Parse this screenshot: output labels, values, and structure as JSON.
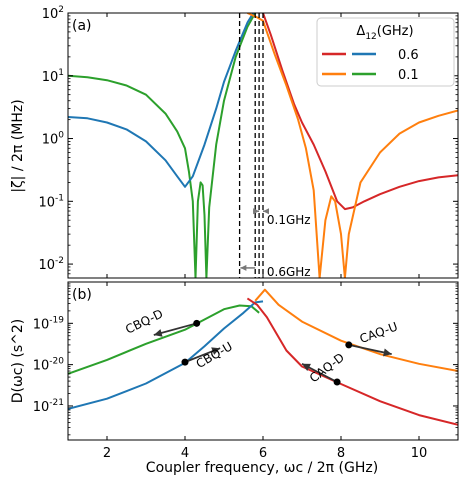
{
  "chart_data": [
    {
      "panel_label": "(a)",
      "type": "line",
      "yscale": "log",
      "xlim": [
        1,
        11
      ],
      "ylim": [
        0.006,
        100
      ],
      "xticks": [
        2,
        4,
        6,
        8,
        10
      ],
      "yticks": [
        {
          "value": 100,
          "label": "10^2"
        },
        {
          "value": 10,
          "label": "10^1"
        },
        {
          "value": 1,
          "label": "10^0"
        },
        {
          "value": 0.1,
          "label": "10^-1"
        },
        {
          "value": 0.01,
          "label": "10^-2"
        }
      ],
      "ylabel": "|ζ| / 2π (MHz)",
      "legend": {
        "title": "Δ12(GHz)",
        "placement": "top-right",
        "rows": [
          {
            "label": "0.6",
            "colors": [
              "#d62728",
              "#1f77b4"
            ]
          },
          {
            "label": "0.1",
            "colors": [
              "#ff7f0e",
              "#2ca02c"
            ]
          }
        ]
      },
      "series": [
        {
          "color": "#2ca02c",
          "points": [
            [
              1,
              10
            ],
            [
              1.5,
              9.5
            ],
            [
              2,
              8.5
            ],
            [
              2.5,
              7
            ],
            [
              3,
              5
            ],
            [
              3.5,
              2.5
            ],
            [
              3.8,
              1.3
            ],
            [
              4.0,
              0.7
            ],
            [
              4.1,
              0.3
            ],
            [
              4.2,
              0.1
            ],
            [
              4.27,
              0.006
            ],
            [
              4.33,
              0.1
            ],
            [
              4.4,
              0.2
            ],
            [
              4.45,
              0.18
            ],
            [
              4.5,
              0.06
            ],
            [
              4.55,
              0.006
            ],
            [
              4.62,
              0.08
            ],
            [
              4.8,
              0.8
            ],
            [
              5.0,
              4
            ],
            [
              5.3,
              20
            ],
            [
              5.6,
              60
            ],
            [
              5.8,
              100
            ]
          ]
        },
        {
          "color": "#1f77b4",
          "points": [
            [
              1,
              2.2
            ],
            [
              1.5,
              2.1
            ],
            [
              2,
              1.8
            ],
            [
              2.5,
              1.4
            ],
            [
              3,
              0.9
            ],
            [
              3.5,
              0.45
            ],
            [
              3.8,
              0.25
            ],
            [
              4.0,
              0.17
            ],
            [
              4.2,
              0.25
            ],
            [
              4.5,
              0.8
            ],
            [
              4.8,
              3
            ],
            [
              5.0,
              8
            ],
            [
              5.3,
              25
            ],
            [
              5.6,
              70
            ],
            [
              5.75,
              100
            ]
          ]
        },
        {
          "color": "#d62728",
          "points": [
            [
              6.0,
              100
            ],
            [
              6.2,
              45
            ],
            [
              6.5,
              12
            ],
            [
              6.8,
              3.5
            ],
            [
              7.0,
              1.8
            ],
            [
              7.3,
              0.8
            ],
            [
              7.6,
              0.3
            ],
            [
              7.9,
              0.1
            ],
            [
              8.1,
              0.075
            ],
            [
              8.3,
              0.08
            ],
            [
              8.6,
              0.1
            ],
            [
              9,
              0.13
            ],
            [
              9.5,
              0.17
            ],
            [
              10,
              0.21
            ],
            [
              10.5,
              0.24
            ],
            [
              11,
              0.26
            ]
          ]
        },
        {
          "color": "#ff7f0e",
          "points": [
            [
              5.6,
              100
            ],
            [
              5.85,
              85
            ],
            [
              6.0,
              75
            ],
            [
              6.3,
              22
            ],
            [
              6.6,
              7
            ],
            [
              6.9,
              2
            ],
            [
              7.1,
              0.7
            ],
            [
              7.3,
              0.15
            ],
            [
              7.45,
              0.006
            ],
            [
              7.6,
              0.05
            ],
            [
              7.75,
              0.12
            ],
            [
              7.85,
              0.1
            ],
            [
              8.0,
              0.03
            ],
            [
              8.1,
              0.006
            ],
            [
              8.2,
              0.03
            ],
            [
              8.5,
              0.2
            ],
            [
              9,
              0.6
            ],
            [
              9.5,
              1.2
            ],
            [
              10,
              1.8
            ],
            [
              10.5,
              2.3
            ],
            [
              11,
              2.8
            ]
          ]
        }
      ],
      "vlines": [
        5.4,
        5.8,
        5.9,
        6.0
      ],
      "annotations": [
        {
          "text": "0.1GHz",
          "x": 6.1,
          "y": 0.05
        },
        {
          "text": "0.6GHz",
          "x": 6.1,
          "y": 0.0075
        }
      ]
    },
    {
      "panel_label": "(b)",
      "type": "line",
      "yscale": "log",
      "xlim": [
        1,
        11
      ],
      "ylim": [
        1.5e-22,
        1e-18
      ],
      "xticks": [
        2,
        4,
        6,
        8,
        10
      ],
      "xticklabels": [
        "2",
        "4",
        "6",
        "8",
        "10"
      ],
      "yticks": [
        {
          "value": 1e-19,
          "label": "10^-19"
        },
        {
          "value": 1e-20,
          "label": "10^-20"
        },
        {
          "value": 1e-21,
          "label": "10^-21"
        }
      ],
      "ylabel": "D(ωc) (s^2)",
      "xlabel": "Coupler frequency, ωc / 2π (GHz)",
      "series": [
        {
          "color": "#2ca02c",
          "points": [
            [
              1,
              6e-21
            ],
            [
              2,
              1.3e-20
            ],
            [
              3,
              3.2e-20
            ],
            [
              4,
              7e-20
            ],
            [
              5,
              2.2e-19
            ],
            [
              5.4,
              2.7e-19
            ],
            [
              5.7,
              2.6e-19
            ],
            [
              5.9,
              1.8e-19
            ]
          ]
        },
        {
          "color": "#1f77b4",
          "points": [
            [
              1,
              8.5e-22
            ],
            [
              2,
              1.5e-21
            ],
            [
              3,
              3.5e-21
            ],
            [
              4,
              1.1e-20
            ],
            [
              4.5,
              2.8e-20
            ],
            [
              5,
              7.5e-20
            ],
            [
              5.5,
              1.8e-19
            ],
            [
              5.8,
              3.2e-19
            ],
            [
              6.0,
              3.4e-19
            ]
          ]
        },
        {
          "color": "#ff7f0e",
          "points": [
            [
              5.8,
              3.5e-19
            ],
            [
              6.05,
              6.5e-19
            ],
            [
              6.4,
              2.8e-19
            ],
            [
              7,
              1.1e-19
            ],
            [
              8,
              3.8e-20
            ],
            [
              9,
              1.8e-20
            ],
            [
              10,
              1.05e-20
            ],
            [
              11,
              7e-21
            ]
          ]
        },
        {
          "color": "#d62728",
          "points": [
            [
              5.6,
              4e-19
            ],
            [
              5.85,
              2.8e-19
            ],
            [
              6.1,
              1.4e-19
            ],
            [
              6.6,
              2.2e-20
            ],
            [
              7,
              9e-21
            ],
            [
              8,
              3.4e-21
            ],
            [
              9,
              1.3e-21
            ],
            [
              10,
              6e-22
            ],
            [
              11,
              3.5e-22
            ]
          ]
        }
      ],
      "markers": [
        [
          4.3,
          1e-19
        ],
        [
          4.0,
          1.15e-20
        ],
        [
          8.2,
          3e-20
        ],
        [
          7.9,
          3.8e-21
        ]
      ],
      "arrows": [
        {
          "text": "CBQ-D",
          "from": [
            4.3,
            1e-19
          ],
          "to": [
            3.2,
            5.2e-20
          ],
          "label_at": [
            3.0,
            9e-20
          ],
          "angle": -26
        },
        {
          "text": "CBQ-U",
          "from": [
            4.0,
            1.15e-20
          ],
          "to": [
            4.9,
            2.5e-20
          ],
          "label_at": [
            4.8,
            1.4e-20
          ],
          "angle": -30
        },
        {
          "text": "CAQ-U",
          "from": [
            8.2,
            3e-20
          ],
          "to": [
            9.3,
            1.8e-20
          ],
          "label_at": [
            9.0,
            4.8e-20
          ],
          "angle": -20
        },
        {
          "text": "CAQ-D",
          "from": [
            7.9,
            3.8e-21
          ],
          "to": [
            7.0,
            1.05e-20
          ],
          "label_at": [
            7.7,
            7e-21
          ],
          "angle": -37
        }
      ]
    }
  ]
}
